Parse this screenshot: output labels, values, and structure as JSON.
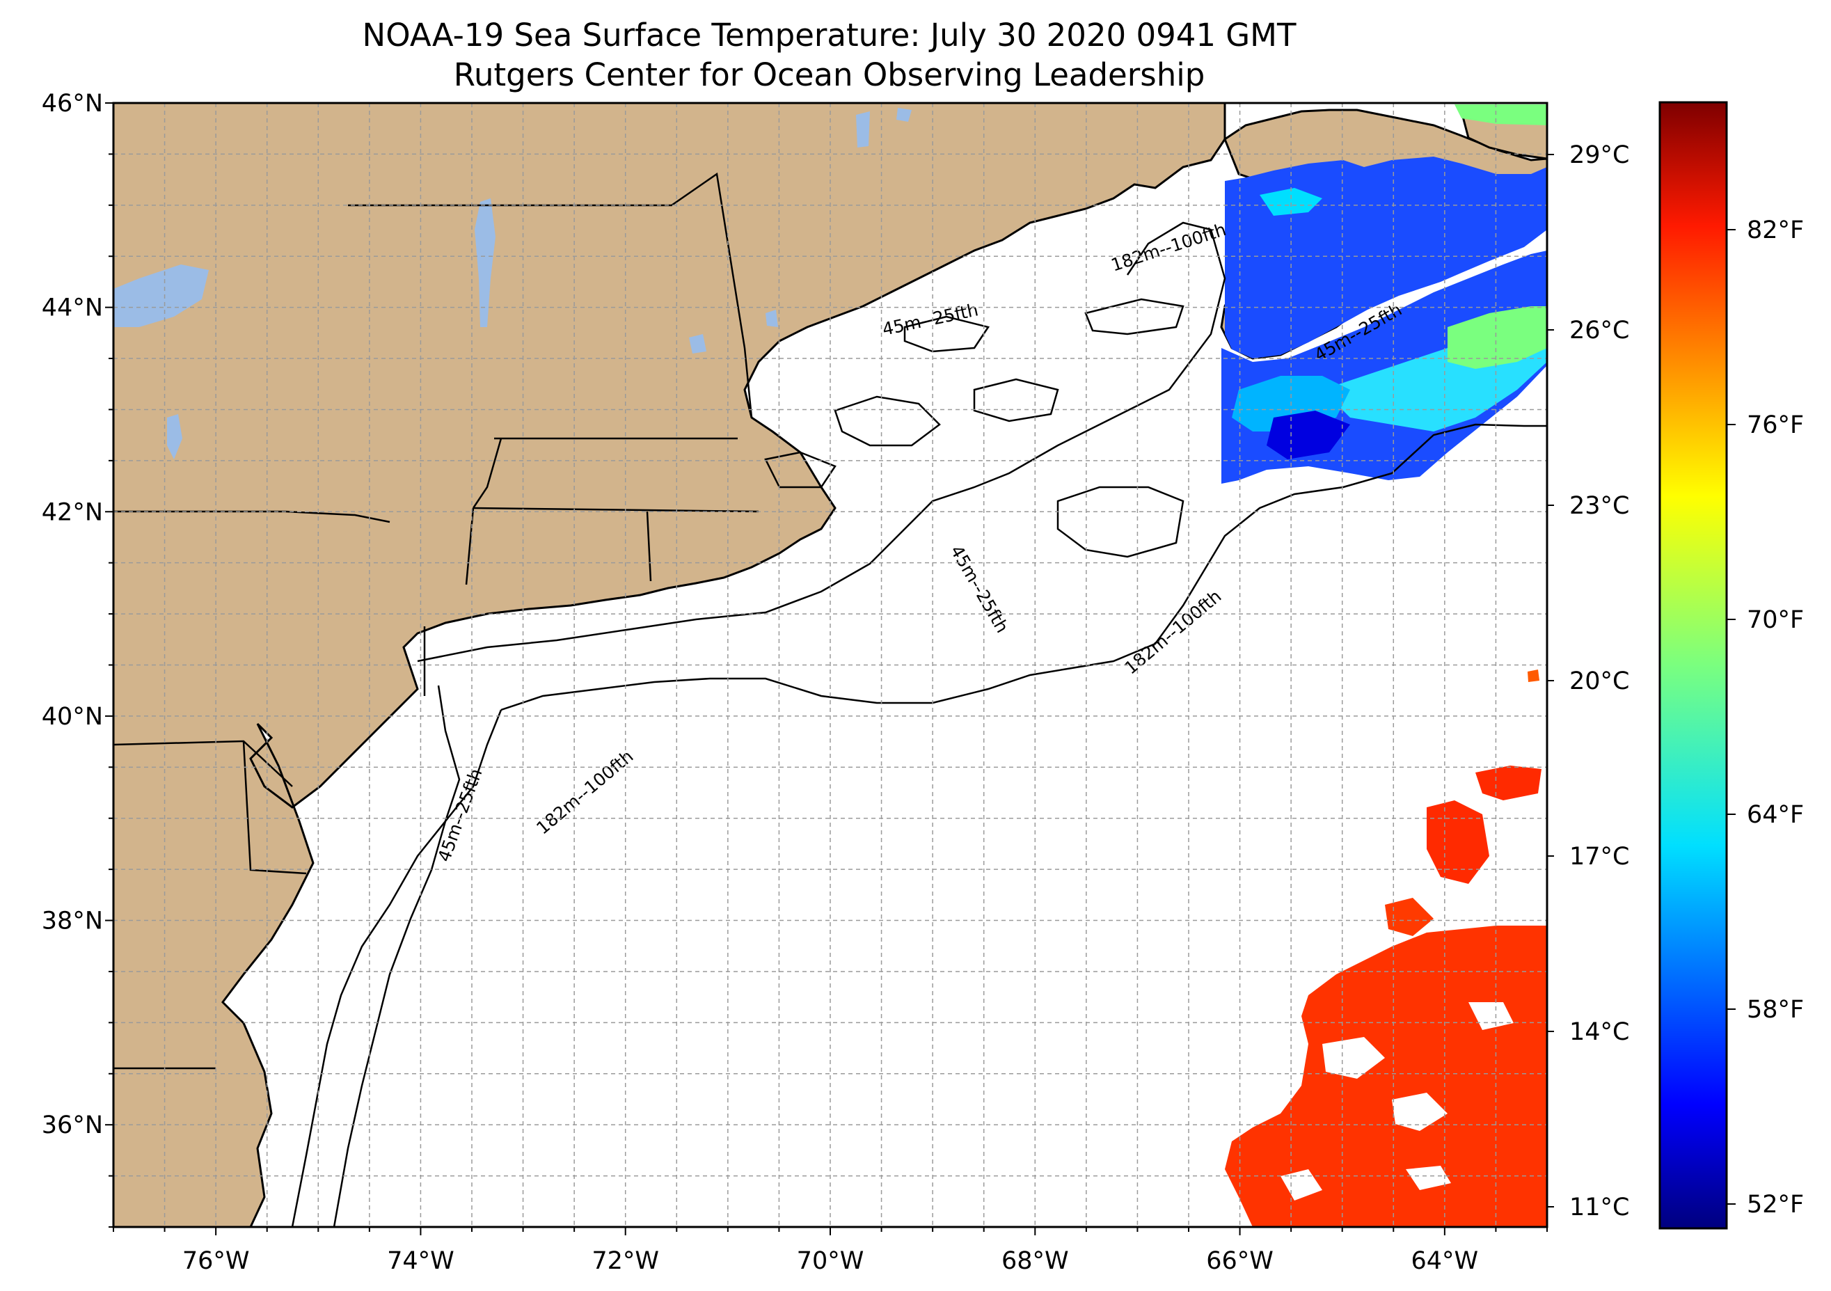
{
  "title": {
    "line1": "NOAA-19 Sea Surface Temperature: July 30 2020 0941 GMT",
    "line2": "Rutgers Center for Ocean Observing Leadership"
  },
  "map": {
    "lon_range": [
      -77,
      -63
    ],
    "lat_range": [
      35,
      46
    ],
    "lon_ticks": [
      "76°W",
      "74°W",
      "72°W",
      "70°W",
      "68°W",
      "66°W",
      "64°W"
    ],
    "lat_ticks": [
      "46°N",
      "44°N",
      "42°N",
      "40°N",
      "38°N",
      "36°N"
    ],
    "gridlines": "dashed",
    "land_color": "#d2b48c",
    "lake_color": "#9bbce6",
    "contour_labels": [
      "45m--25fth",
      "182m--100fth"
    ]
  },
  "colorbar": {
    "colormap": "jet",
    "celsius_ticks": [
      "29°C",
      "26°C",
      "23°C",
      "20°C",
      "17°C",
      "14°C",
      "11°C"
    ],
    "fahrenheit_ticks": [
      "82°F",
      "76°F",
      "70°F",
      "64°F",
      "58°F",
      "52°F"
    ]
  },
  "colors": {
    "cold_sst": "#1a4cff",
    "warm_sst": "#ff3300"
  }
}
